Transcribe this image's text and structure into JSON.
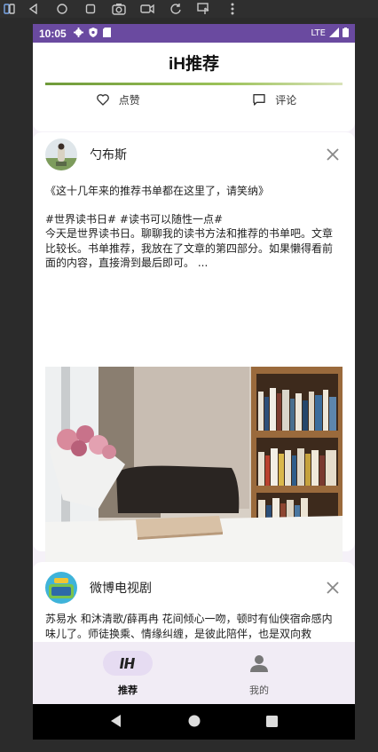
{
  "emulator_toolbar": {
    "icons": [
      "power-icon",
      "back-icon",
      "home-icon",
      "overview-icon",
      "camera-icon",
      "video-icon",
      "rotate-icon",
      "touch-icon",
      "more-icon"
    ]
  },
  "status_bar": {
    "time": "10:05",
    "network": "LTE",
    "bg_color": "#6a4aa0"
  },
  "app_bar": {
    "title": "iH推荐"
  },
  "actions": {
    "like_label": "点赞",
    "comment_label": "评论"
  },
  "posts": [
    {
      "author": "勺布斯",
      "title_line": "《这十几年来的推荐书单都在这里了，请笑纳》",
      "hashtags": "#世界读书日# #读书可以随性一点#",
      "body": "今天是世界读书日。聊聊我的读书方法和推荐的书单吧。文章比较长。书单推荐，我放在了文章的第四部分。如果懒得看前面的内容，直接滑到最后即可。 ..."
    },
    {
      "author": "微博电视剧",
      "body": "苏易水 和沐清歌/薛再冉 花间倾心一吻，顿时有仙侠宿命感内味儿了。师徒换乘、情缘纠缠，是彼此陪伴，也是双向救"
    }
  ],
  "bottom_nav": {
    "items": [
      {
        "label": "推荐",
        "active": true
      },
      {
        "label": "我的",
        "active": false
      }
    ]
  }
}
